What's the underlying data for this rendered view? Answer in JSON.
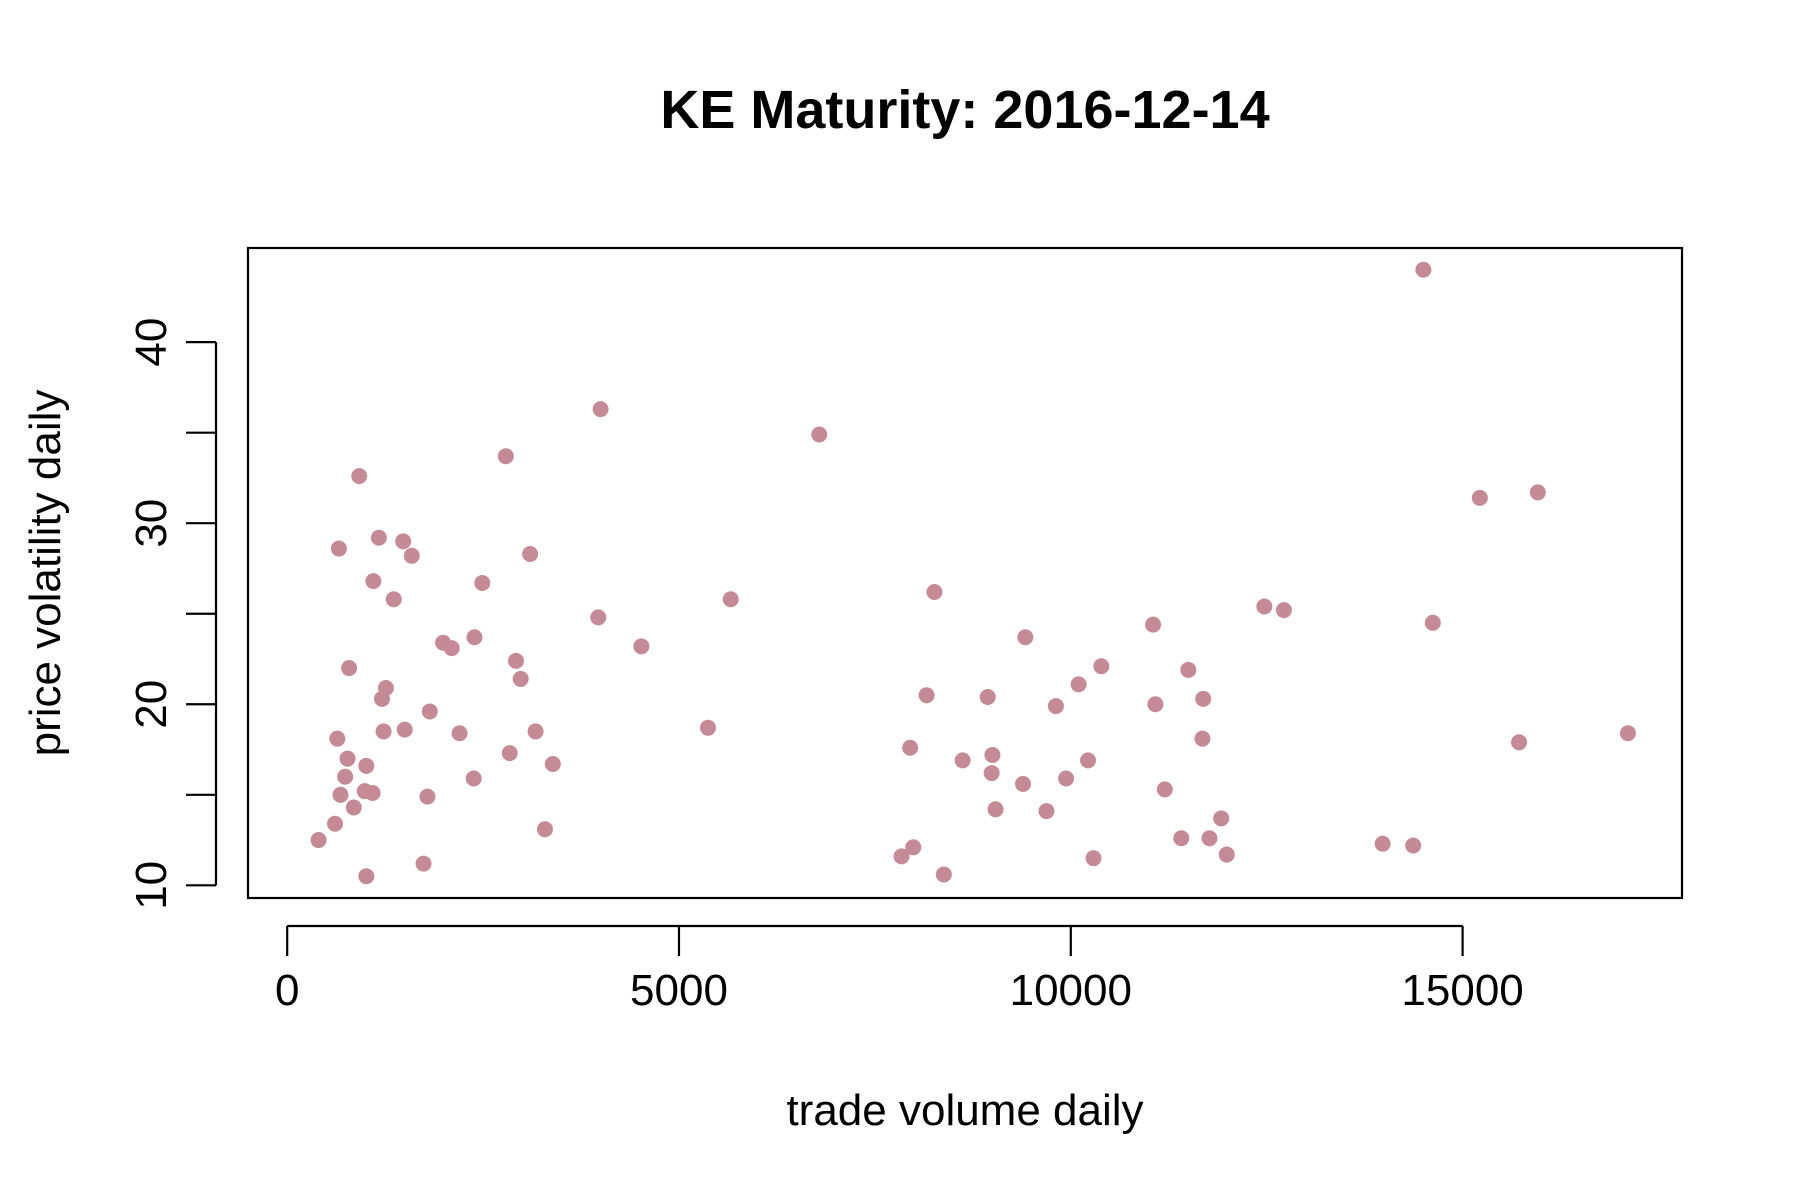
{
  "chart_data": {
    "type": "scatter",
    "title": "KE Maturity: 2016-12-14",
    "xlabel": "trade volume daily",
    "ylabel": "price volatility daily",
    "xlim": [
      -500,
      17800
    ],
    "ylim": [
      9.3,
      45.2
    ],
    "x_ticks": [
      0,
      5000,
      10000,
      15000
    ],
    "y_ticks": [
      10,
      15,
      20,
      25,
      30,
      35,
      40
    ],
    "y_tick_labels": [
      {
        "value": 10,
        "label": "10"
      },
      {
        "value": 20,
        "label": "20"
      },
      {
        "value": 30,
        "label": "30"
      },
      {
        "value": 40,
        "label": "40"
      }
    ],
    "x_tick_labels": [
      {
        "value": 0,
        "label": "0"
      },
      {
        "value": 5000,
        "label": "5000"
      },
      {
        "value": 10000,
        "label": "10000"
      },
      {
        "value": 15000,
        "label": "15000"
      }
    ],
    "grid": false,
    "legend": "none",
    "point_color": "#c48b97",
    "points": [
      [
        400,
        12.5
      ],
      [
        610,
        13.4
      ],
      [
        640,
        18.1
      ],
      [
        660,
        28.6
      ],
      [
        680,
        15.0
      ],
      [
        740,
        16.0
      ],
      [
        770,
        17.0
      ],
      [
        790,
        22.0
      ],
      [
        850,
        14.3
      ],
      [
        920,
        32.6
      ],
      [
        990,
        15.2
      ],
      [
        1010,
        16.6
      ],
      [
        1010,
        10.5
      ],
      [
        1090,
        15.1
      ],
      [
        1100,
        26.8
      ],
      [
        1170,
        29.2
      ],
      [
        1210,
        20.3
      ],
      [
        1230,
        18.5
      ],
      [
        1260,
        20.9
      ],
      [
        1360,
        25.8
      ],
      [
        1480,
        29.0
      ],
      [
        1500,
        18.6
      ],
      [
        1590,
        28.2
      ],
      [
        1740,
        11.2
      ],
      [
        1790,
        14.9
      ],
      [
        1820,
        19.6
      ],
      [
        1990,
        23.4
      ],
      [
        2100,
        23.1
      ],
      [
        2200,
        18.4
      ],
      [
        2380,
        15.9
      ],
      [
        2390,
        23.7
      ],
      [
        2490,
        26.7
      ],
      [
        2790,
        33.7
      ],
      [
        2840,
        17.3
      ],
      [
        2920,
        22.4
      ],
      [
        2980,
        21.4
      ],
      [
        3100,
        28.3
      ],
      [
        3170,
        18.5
      ],
      [
        3290,
        13.1
      ],
      [
        3390,
        16.7
      ],
      [
        3970,
        24.8
      ],
      [
        4000,
        36.3
      ],
      [
        4520,
        23.2
      ],
      [
        5370,
        18.7
      ],
      [
        5660,
        25.8
      ],
      [
        6790,
        34.9
      ],
      [
        7840,
        11.6
      ],
      [
        7950,
        17.6
      ],
      [
        7990,
        12.1
      ],
      [
        8260,
        26.2
      ],
      [
        8160,
        20.5
      ],
      [
        8380,
        10.6
      ],
      [
        8620,
        16.9
      ],
      [
        8940,
        20.4
      ],
      [
        8990,
        16.2
      ],
      [
        9000,
        17.2
      ],
      [
        9040,
        14.2
      ],
      [
        9390,
        15.6
      ],
      [
        9420,
        23.7
      ],
      [
        9690,
        14.1
      ],
      [
        9810,
        19.9
      ],
      [
        9940,
        15.9
      ],
      [
        10100,
        21.1
      ],
      [
        10220,
        16.9
      ],
      [
        10290,
        11.5
      ],
      [
        10390,
        22.1
      ],
      [
        11050,
        24.4
      ],
      [
        11080,
        20.0
      ],
      [
        11200,
        15.3
      ],
      [
        11410,
        12.6
      ],
      [
        11500,
        21.9
      ],
      [
        11680,
        18.1
      ],
      [
        11690,
        20.3
      ],
      [
        11770,
        12.6
      ],
      [
        11920,
        13.7
      ],
      [
        11990,
        11.7
      ],
      [
        12470,
        25.4
      ],
      [
        12720,
        25.2
      ],
      [
        13980,
        12.3
      ],
      [
        14370,
        12.2
      ],
      [
        14500,
        44.0
      ],
      [
        14620,
        24.5
      ],
      [
        15220,
        31.4
      ],
      [
        15720,
        17.9
      ],
      [
        15960,
        31.7
      ],
      [
        17110,
        18.4
      ]
    ]
  }
}
